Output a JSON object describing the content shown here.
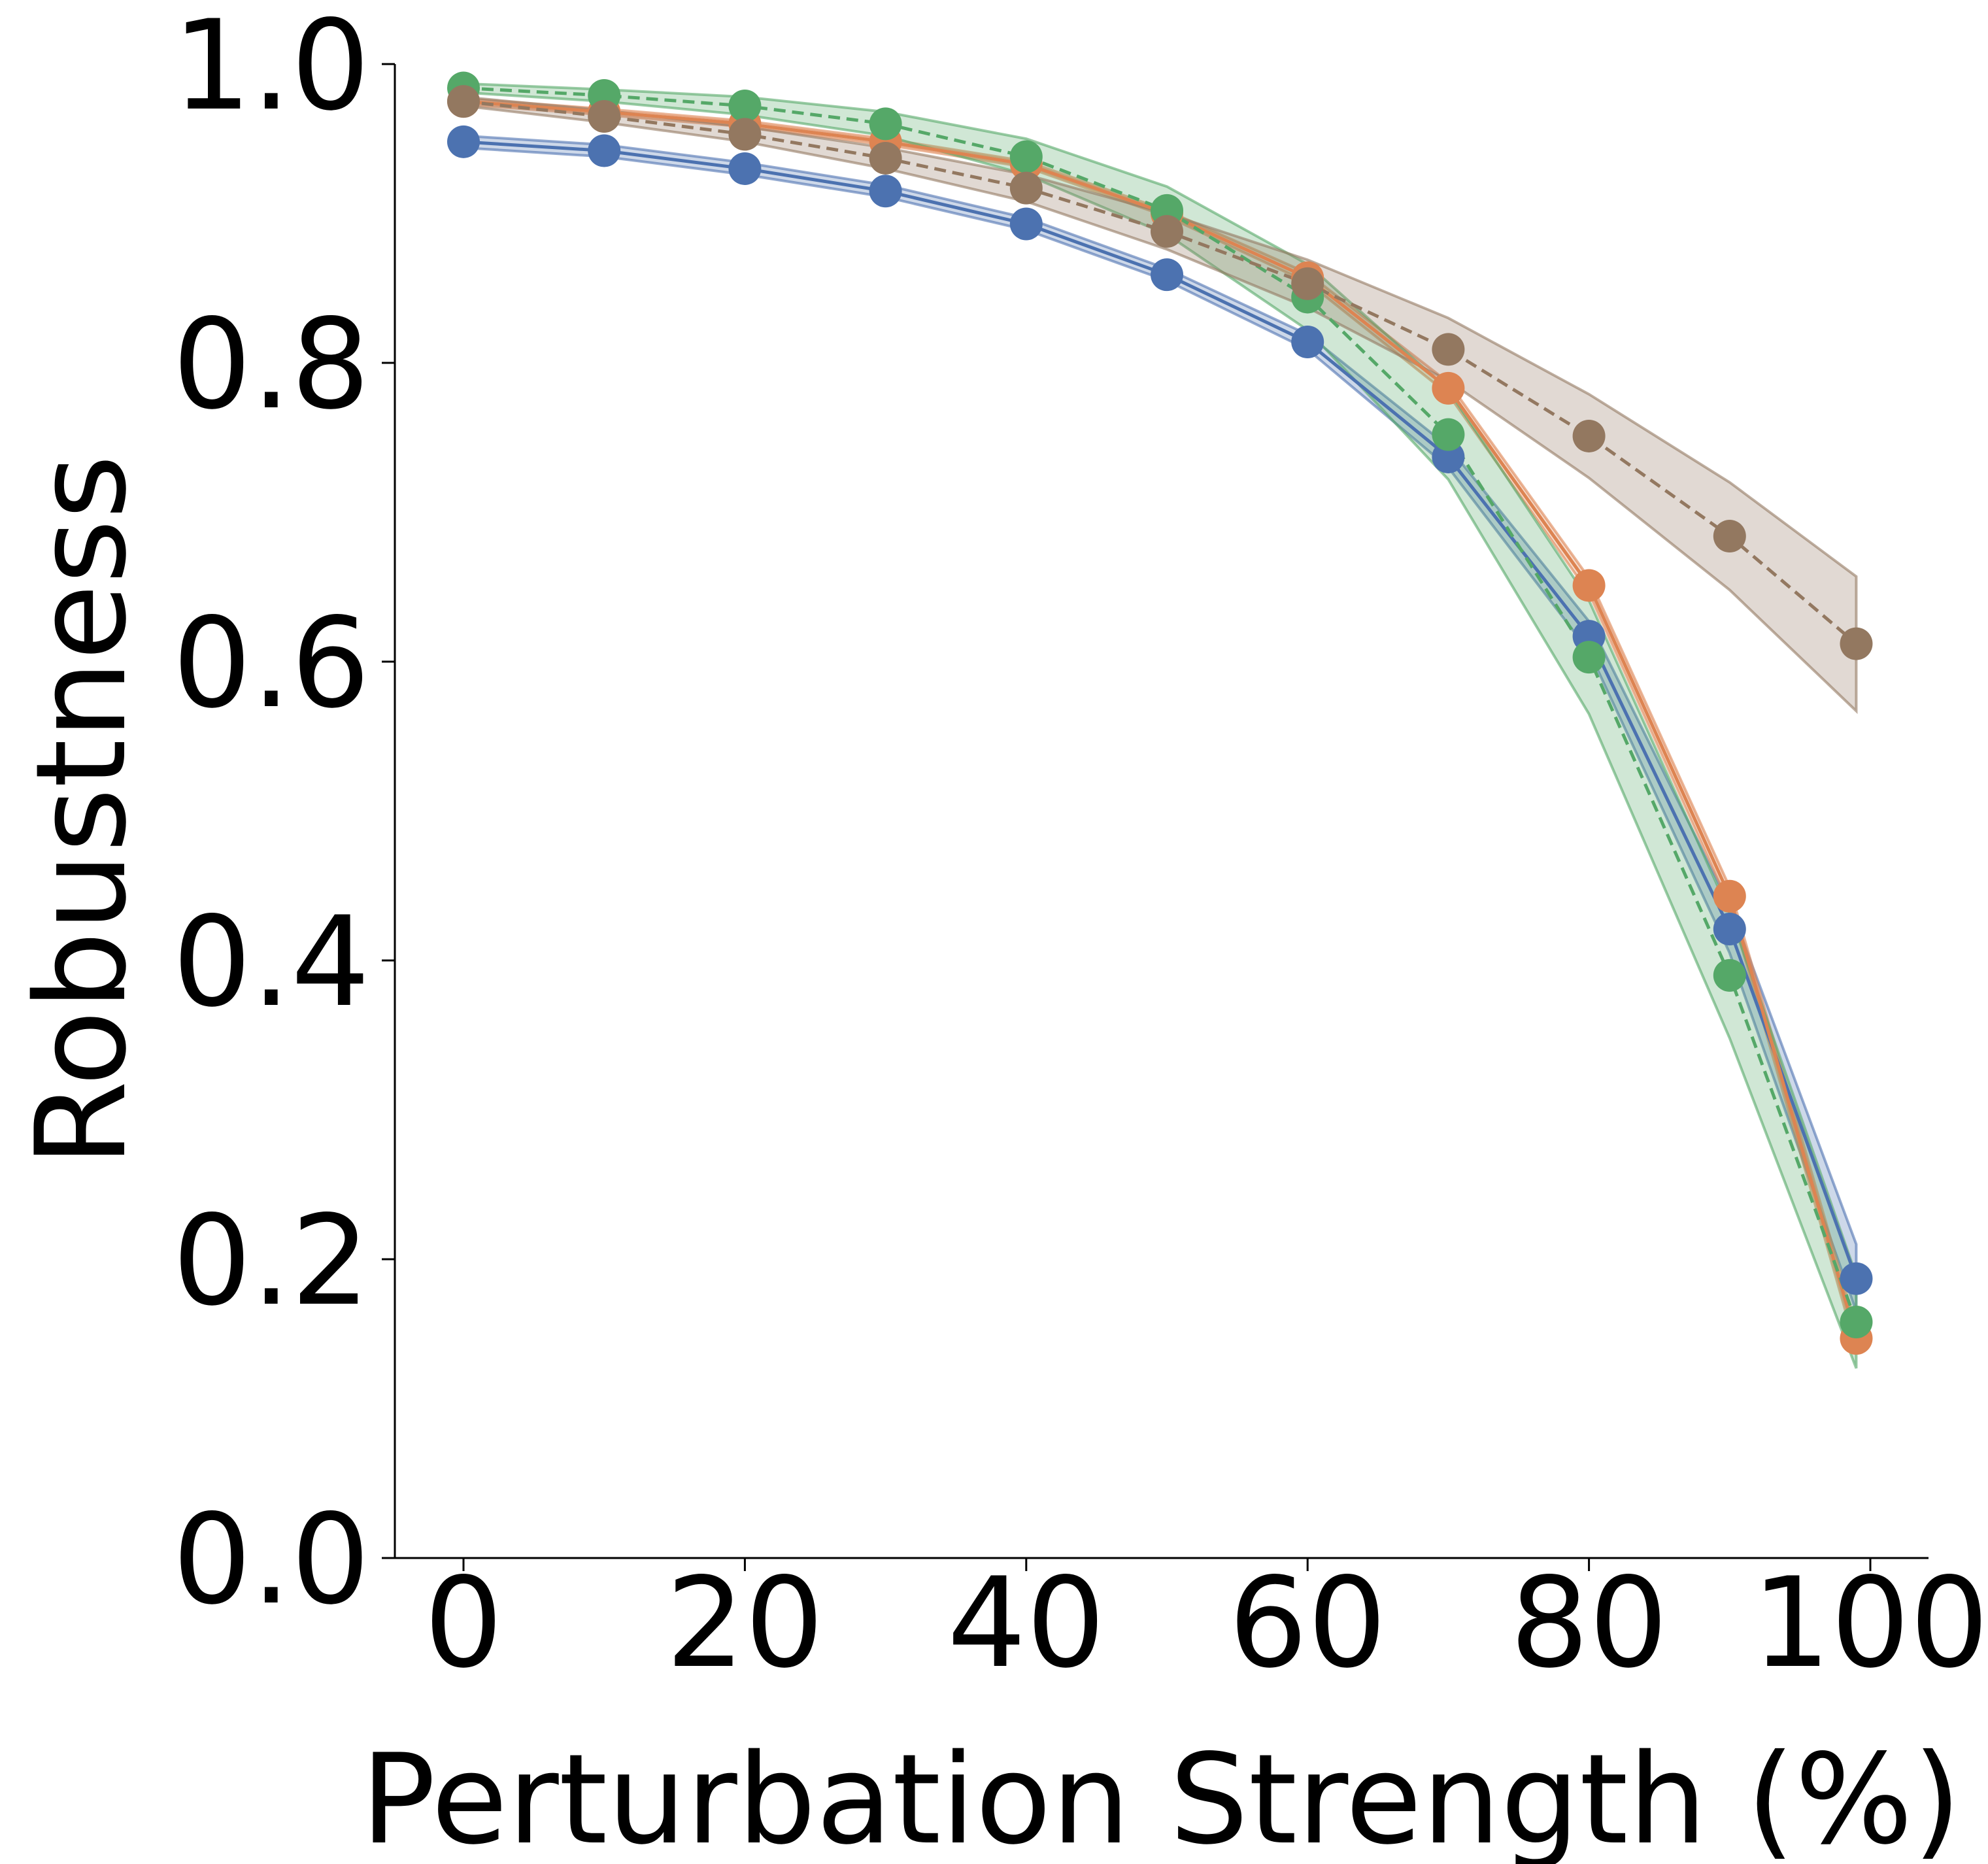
{
  "chart_data": {
    "type": "line",
    "title": "",
    "xlabel": "Perturbation Strength (%)",
    "ylabel": "Robustness",
    "xlim": [
      -5,
      104
    ],
    "ylim": [
      0.0,
      1.0
    ],
    "xticks": [
      0,
      20,
      40,
      60,
      80,
      100
    ],
    "yticks": [
      0.0,
      0.2,
      0.4,
      0.6,
      0.8,
      1.0
    ],
    "xtick_labels": [
      "0",
      "20",
      "40",
      "60",
      "80",
      "100"
    ],
    "ytick_labels": [
      "0.0",
      "0.2",
      "0.4",
      "0.6",
      "0.8",
      "1.0"
    ],
    "grid": false,
    "legend": "none",
    "x": [
      0,
      10,
      20,
      30,
      40,
      50,
      60,
      70,
      80,
      90,
      99
    ],
    "series": [
      {
        "color": "#4c72b0",
        "line_style": "solid",
        "values": [
          0.948,
          0.942,
          0.93,
          0.915,
          0.893,
          0.859,
          0.814,
          0.737,
          0.617,
          0.421,
          0.187
        ],
        "band_low": [
          0.944,
          0.938,
          0.926,
          0.911,
          0.889,
          0.855,
          0.809,
          0.73,
          0.607,
          0.405,
          0.165
        ],
        "band_high": [
          0.952,
          0.946,
          0.934,
          0.919,
          0.897,
          0.863,
          0.819,
          0.744,
          0.627,
          0.437,
          0.21
        ]
      },
      {
        "color": "#dd8452",
        "line_style": "solid",
        "values": [
          0.975,
          0.968,
          0.96,
          0.948,
          0.933,
          0.9,
          0.857,
          0.783,
          0.651,
          0.443,
          0.147
        ],
        "band_low": [
          0.973,
          0.966,
          0.958,
          0.946,
          0.931,
          0.898,
          0.854,
          0.779,
          0.646,
          0.437,
          0.14
        ],
        "band_high": [
          0.977,
          0.97,
          0.962,
          0.95,
          0.935,
          0.902,
          0.86,
          0.787,
          0.656,
          0.449,
          0.154
        ]
      },
      {
        "color": "#55a868",
        "line_style": "dashed",
        "values": [
          0.984,
          0.979,
          0.972,
          0.96,
          0.938,
          0.902,
          0.844,
          0.752,
          0.603,
          0.39,
          0.158
        ],
        "band_low": [
          0.981,
          0.975,
          0.966,
          0.952,
          0.926,
          0.886,
          0.822,
          0.722,
          0.565,
          0.348,
          0.127
        ],
        "band_high": [
          0.987,
          0.983,
          0.978,
          0.968,
          0.95,
          0.918,
          0.866,
          0.782,
          0.641,
          0.432,
          0.189
        ]
      },
      {
        "color": "#937860",
        "line_style": "dashed",
        "values": [
          0.975,
          0.965,
          0.953,
          0.937,
          0.917,
          0.888,
          0.853,
          0.809,
          0.751,
          0.684,
          0.612
        ],
        "band_low": [
          0.972,
          0.961,
          0.948,
          0.93,
          0.908,
          0.876,
          0.837,
          0.788,
          0.723,
          0.648,
          0.567
        ],
        "band_high": [
          0.978,
          0.969,
          0.958,
          0.944,
          0.926,
          0.9,
          0.869,
          0.83,
          0.779,
          0.72,
          0.657
        ]
      }
    ]
  }
}
